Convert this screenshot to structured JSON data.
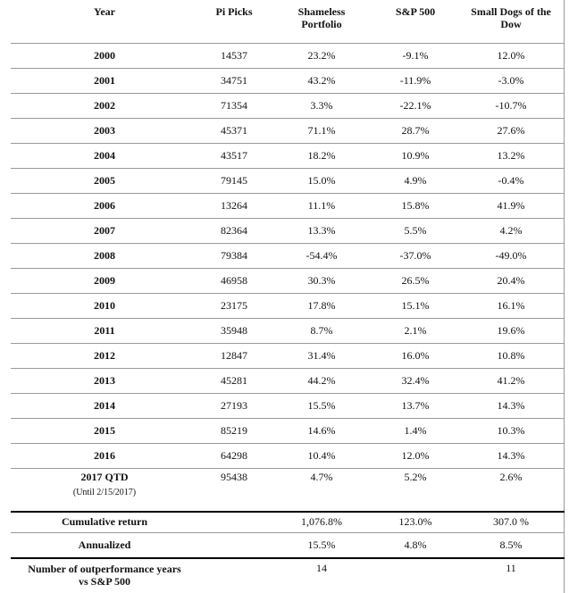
{
  "table": {
    "header": [
      "Year",
      "Pi Picks",
      "Shameless Portfolio",
      "S&P 500",
      "Small Dogs of the Dow"
    ],
    "rows": [
      [
        "2000",
        "14537",
        "23.2%",
        "-9.1%",
        "12.0%"
      ],
      [
        "2001",
        "34751",
        "43.2%",
        "-11.9%",
        "-3.0%"
      ],
      [
        "2002",
        "71354",
        "3.3%",
        "-22.1%",
        "-10.7%"
      ],
      [
        "2003",
        "45371",
        "71.1%",
        "28.7%",
        "27.6%"
      ],
      [
        "2004",
        "43517",
        "18.2%",
        "10.9%",
        "13.2%"
      ],
      [
        "2005",
        "79145",
        "15.0%",
        "4.9%",
        "-0.4%"
      ],
      [
        "2006",
        "13264",
        "11.1%",
        "15.8%",
        "41.9%"
      ],
      [
        "2007",
        "82364",
        "13.3%",
        "5.5%",
        "4.2%"
      ],
      [
        "2008",
        "79384",
        "-54.4%",
        "-37.0%",
        "-49.0%"
      ],
      [
        "2009",
        "46958",
        "30.3%",
        "26.5%",
        "20.4%"
      ],
      [
        "2010",
        "23175",
        "17.8%",
        "15.1%",
        "16.1%"
      ],
      [
        "2011",
        "35948",
        "8.7%",
        "2.1%",
        "19.6%"
      ],
      [
        "2012",
        "12847",
        "31.4%",
        "16.0%",
        "10.8%"
      ],
      [
        "2013",
        "45281",
        "44.2%",
        "32.4%",
        "41.2%"
      ],
      [
        "2014",
        "27193",
        "15.5%",
        "13.7%",
        "14.3%"
      ],
      [
        "2015",
        "85219",
        "14.6%",
        "1.4%",
        "10.3%"
      ],
      [
        "2016",
        "64298",
        "10.4%",
        "12.0%",
        "14.3%"
      ]
    ],
    "qtd": {
      "year": "2017 QTD",
      "note": "(Until 2/15/2017)",
      "pi": "95438",
      "shameless": "4.7%",
      "sp500": "5.2%",
      "dogs": "2.6%"
    },
    "summary": [
      {
        "label": "Cumulative return",
        "shameless": "1,076.8%",
        "sp500": "123.0%",
        "dogs": "307.0 %"
      },
      {
        "label": "Annualized",
        "shameless": "15.5%",
        "sp500": "4.8%",
        "dogs": "8.5%"
      },
      {
        "label": "Number of outperformance years vs S&P 500",
        "shameless": "14",
        "dogs": "11"
      }
    ]
  }
}
